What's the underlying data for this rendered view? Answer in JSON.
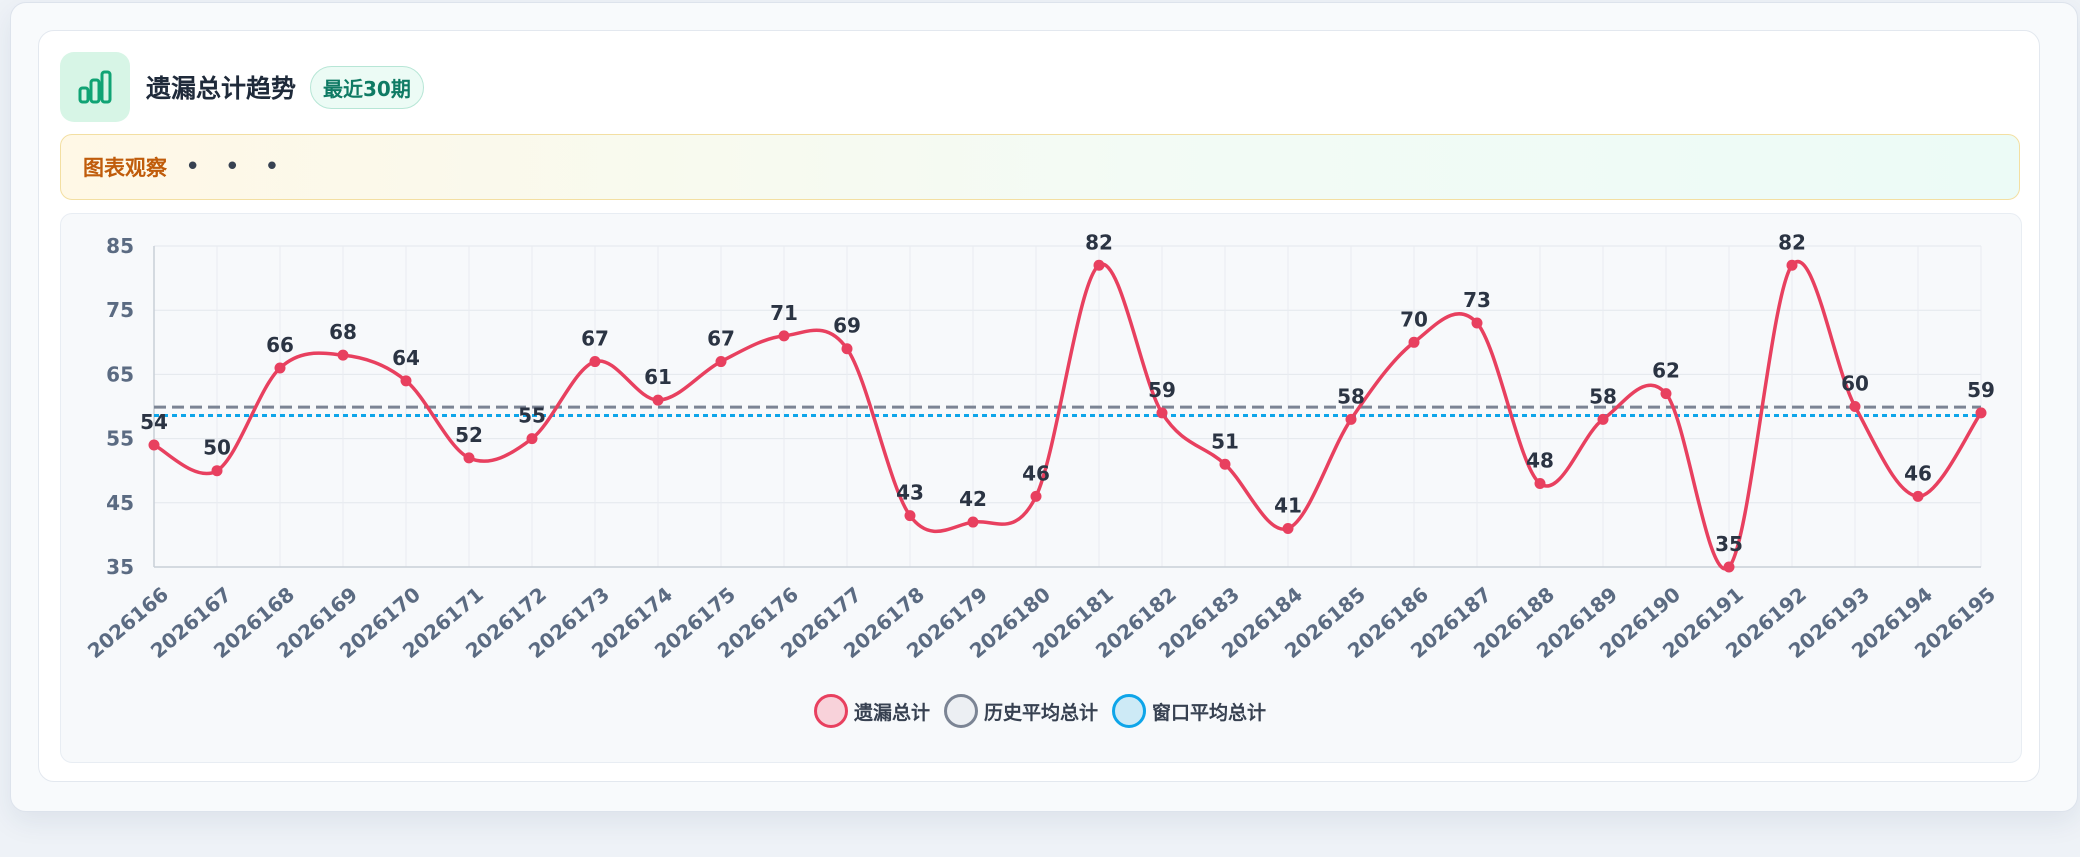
{
  "header": {
    "title": "遗漏总计趋势",
    "badge": "最近30期"
  },
  "observation": {
    "label": "图表观察",
    "dots": "• • •"
  },
  "chart_data": {
    "type": "line",
    "categories": [
      "2026166",
      "2026167",
      "2026168",
      "2026169",
      "2026170",
      "2026171",
      "2026172",
      "2026173",
      "2026174",
      "2026175",
      "2026176",
      "2026177",
      "2026178",
      "2026179",
      "2026180",
      "2026181",
      "2026182",
      "2026183",
      "2026184",
      "2026185",
      "2026186",
      "2026187",
      "2026188",
      "2026189",
      "2026190",
      "2026191",
      "2026192",
      "2026193",
      "2026194",
      "2026195"
    ],
    "series": [
      {
        "name": "遗漏总计",
        "color": "#e8405f",
        "values": [
          54,
          50,
          66,
          68,
          64,
          52,
          55,
          67,
          61,
          67,
          71,
          69,
          43,
          42,
          46,
          82,
          59,
          51,
          41,
          58,
          70,
          73,
          48,
          58,
          62,
          35,
          82,
          60,
          46,
          59
        ]
      }
    ],
    "reference_lines": [
      {
        "name": "历史平均总计",
        "color": "#7b8494",
        "style": "dashed",
        "value": 59.9
      },
      {
        "name": "窗口平均总计",
        "color": "#0ea5e9",
        "style": "dotted",
        "value": 58.6
      }
    ],
    "yticks": [
      35,
      45,
      55,
      65,
      75,
      85
    ],
    "ylim": [
      35,
      85
    ],
    "grid": true,
    "legend_position": "bottom-center"
  },
  "colors": {
    "accent": "#e8405f",
    "history": "#7b8494",
    "window": "#0ea5e9",
    "icon": "#10a374"
  }
}
